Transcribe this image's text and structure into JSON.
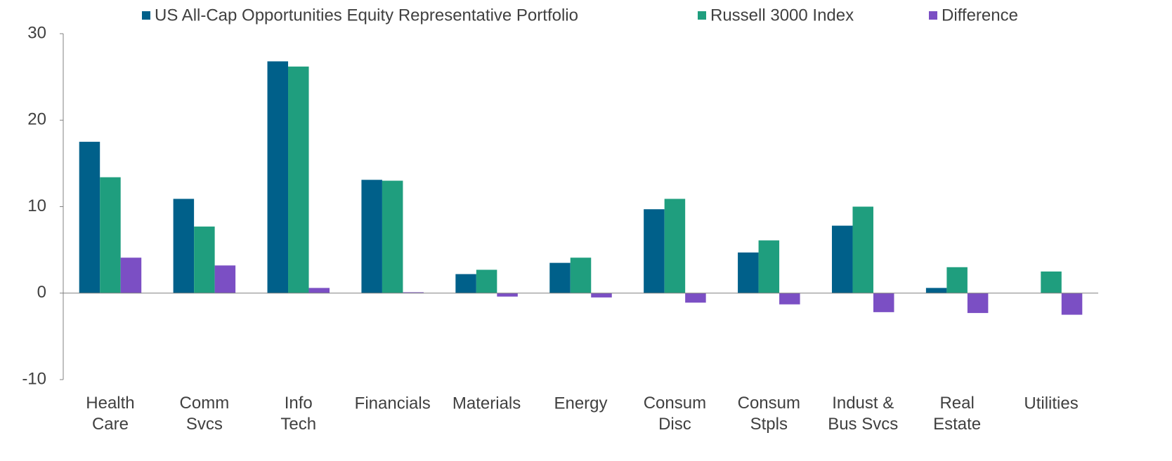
{
  "chart_data": {
    "type": "bar",
    "categories": [
      "Health\nCare",
      "Comm\nSvcs",
      "Info\nTech",
      "Financials",
      "Materials",
      "Energy",
      "Consum\nDisc",
      "Consum\nStpls",
      "Indust &\nBus Svcs",
      "Real\nEstate",
      "Utilities"
    ],
    "series": [
      {
        "name": "US All-Cap Opportunities Equity Representative Portfolio",
        "color": "#00608a",
        "values": [
          17.5,
          10.9,
          26.8,
          13.1,
          2.2,
          3.5,
          9.7,
          4.7,
          7.8,
          0.6,
          0
        ]
      },
      {
        "name": "Russell 3000 Index",
        "color": "#1f9e7e",
        "values": [
          13.4,
          7.7,
          26.2,
          13.0,
          2.7,
          4.1,
          10.9,
          6.1,
          10.0,
          3.0,
          2.5
        ]
      },
      {
        "name": "Difference",
        "color": "#7b4fc4",
        "values": [
          4.1,
          3.2,
          0.6,
          0.1,
          -0.4,
          -0.5,
          -1.1,
          -1.3,
          -2.2,
          -2.3,
          -2.5
        ]
      }
    ],
    "ylim": [
      -10,
      30
    ],
    "yticks": [
      -10,
      0,
      10,
      20,
      30
    ],
    "grid": false,
    "legend": "top"
  }
}
